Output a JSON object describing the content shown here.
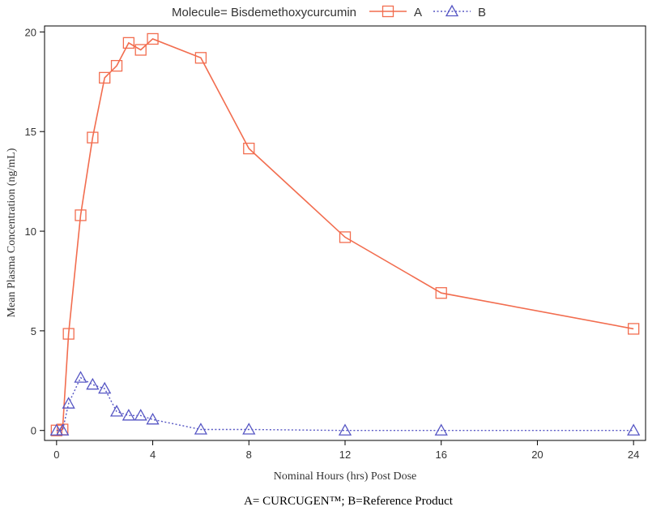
{
  "legend": {
    "title": "Molecule= Bisdemethoxycurcumin"
  },
  "caption": "A= CURCUGEN™; B=Reference Product",
  "chart_data": {
    "type": "line",
    "xlabel": "Nominal Hours (hrs) Post Dose",
    "ylabel": "Mean Plasma Concentration (ng/mL)",
    "xlim": [
      -0.5,
      24.5
    ],
    "ylim": [
      -0.5,
      20.3
    ],
    "xticks": [
      0,
      4,
      8,
      12,
      16,
      20,
      24
    ],
    "yticks": [
      0,
      5,
      10,
      15,
      20
    ],
    "grid": false,
    "legend_position": "top",
    "series": [
      {
        "name": "A",
        "color": "#f26d4f",
        "marker": "square",
        "line_style": "solid",
        "x": [
          0,
          0.25,
          0.5,
          1,
          1.5,
          2,
          2.5,
          3,
          3.5,
          4,
          6,
          8,
          12,
          16,
          24
        ],
        "y": [
          0,
          0.05,
          4.85,
          10.8,
          14.7,
          17.7,
          18.3,
          19.45,
          19.1,
          19.65,
          18.7,
          14.15,
          9.7,
          6.9,
          5.1
        ]
      },
      {
        "name": "B",
        "color": "#5656c4",
        "marker": "triangle",
        "line_style": "dotted",
        "x": [
          0,
          0.25,
          0.5,
          1,
          1.5,
          2,
          2.5,
          3,
          3.5,
          4,
          6,
          8,
          12,
          16,
          24
        ],
        "y": [
          0,
          0,
          1.35,
          2.65,
          2.3,
          2.1,
          0.95,
          0.75,
          0.75,
          0.55,
          0.05,
          0.05,
          0,
          0,
          0
        ]
      }
    ]
  }
}
